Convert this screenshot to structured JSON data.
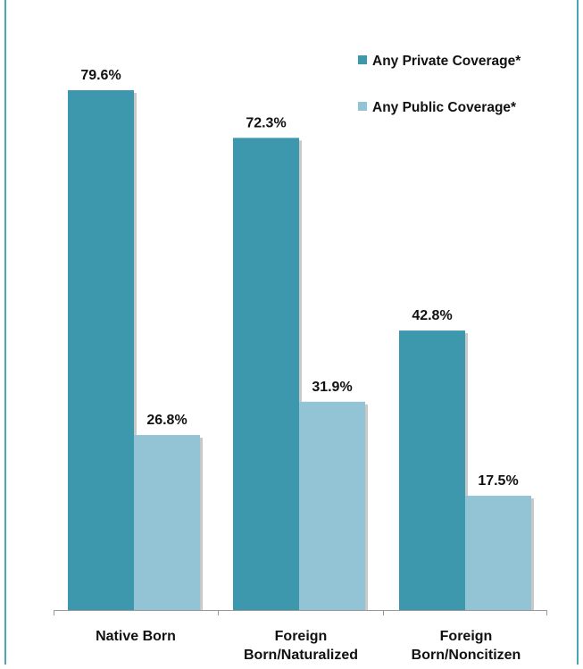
{
  "chart_data": {
    "type": "bar",
    "categories": [
      [
        "Native Born"
      ],
      [
        "Foreign",
        "Born/Naturalized"
      ],
      [
        "Foreign",
        "Born/Noncitizen"
      ]
    ],
    "series": [
      {
        "name": "Any Private Coverage*",
        "values": [
          79.6,
          72.3,
          42.8
        ],
        "labels": [
          "79.6%",
          "72.3%",
          "42.8%"
        ],
        "color": "#3d97ad"
      },
      {
        "name": "Any Public Coverage*",
        "values": [
          26.8,
          31.9,
          17.5
        ],
        "labels": [
          "26.8%",
          "31.9%",
          "17.5%"
        ],
        "color": "#93c4d5"
      }
    ],
    "ylim": [
      0,
      100
    ],
    "grid": false,
    "legend_position": "top-right",
    "frame_color": "#49a7b8",
    "shadow_color": "#c8c8c8",
    "axis_color": "#999999"
  }
}
